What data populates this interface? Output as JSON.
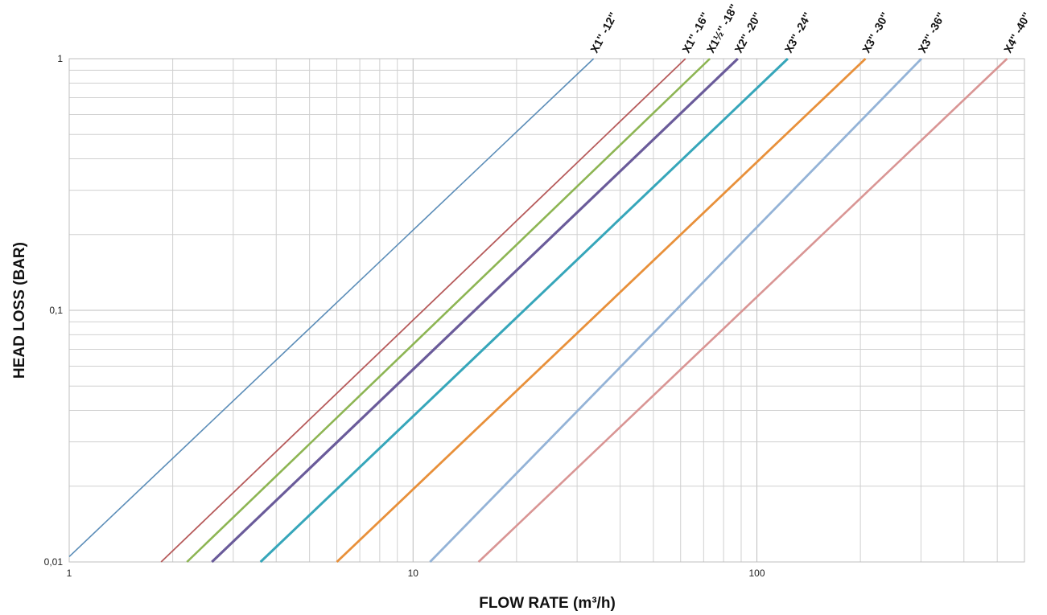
{
  "chart_data": {
    "type": "line",
    "xscale": "log",
    "yscale": "log",
    "xlabel": "FLOW RATE (m³/h)",
    "ylabel": "HEAD LOSS (BAR)",
    "xlim": [
      1,
      600
    ],
    "ylim": [
      0.01,
      1
    ],
    "x_ticks": [
      {
        "value": 1,
        "label": "1"
      },
      {
        "value": 10,
        "label": "10"
      },
      {
        "value": 100,
        "label": "100"
      }
    ],
    "y_ticks": [
      {
        "value": 0.01,
        "label": "0,01"
      },
      {
        "value": 0.1,
        "label": "0,1"
      },
      {
        "value": 1,
        "label": "1"
      }
    ],
    "grid": true,
    "legend": "series labels at top end of each line",
    "series": [
      {
        "name": "X1'' -12''",
        "color": "#5B8DB8",
        "width": 1.6,
        "x": [
          1,
          33.5
        ],
        "y": [
          0.0105,
          1
        ]
      },
      {
        "name": "X1'' -16''",
        "color": "#B65A5A",
        "width": 1.8,
        "x": [
          1.85,
          62
        ],
        "y": [
          0.01,
          1
        ]
      },
      {
        "name": "X1½'' -18''",
        "color": "#8DB553",
        "width": 2.6,
        "x": [
          2.2,
          73
        ],
        "y": [
          0.01,
          1
        ]
      },
      {
        "name": "X2'' -20''",
        "color": "#6A5B9A",
        "width": 3.2,
        "x": [
          2.6,
          88
        ],
        "y": [
          0.01,
          1
        ]
      },
      {
        "name": "X3'' -24''",
        "color": "#36A6BA",
        "width": 3.0,
        "x": [
          3.6,
          123
        ],
        "y": [
          0.01,
          1
        ]
      },
      {
        "name": "X3'' -30''",
        "color": "#E8903A",
        "width": 2.8,
        "x": [
          6.0,
          207
        ],
        "y": [
          0.01,
          1
        ]
      },
      {
        "name": "X3'' -36''",
        "color": "#94B3D7",
        "width": 2.8,
        "x": [
          11.2,
          301
        ],
        "y": [
          0.01,
          1
        ]
      },
      {
        "name": "X4'' -40''",
        "color": "#D99594",
        "width": 2.6,
        "x": [
          15.5,
          534
        ],
        "y": [
          0.01,
          1
        ]
      }
    ]
  }
}
